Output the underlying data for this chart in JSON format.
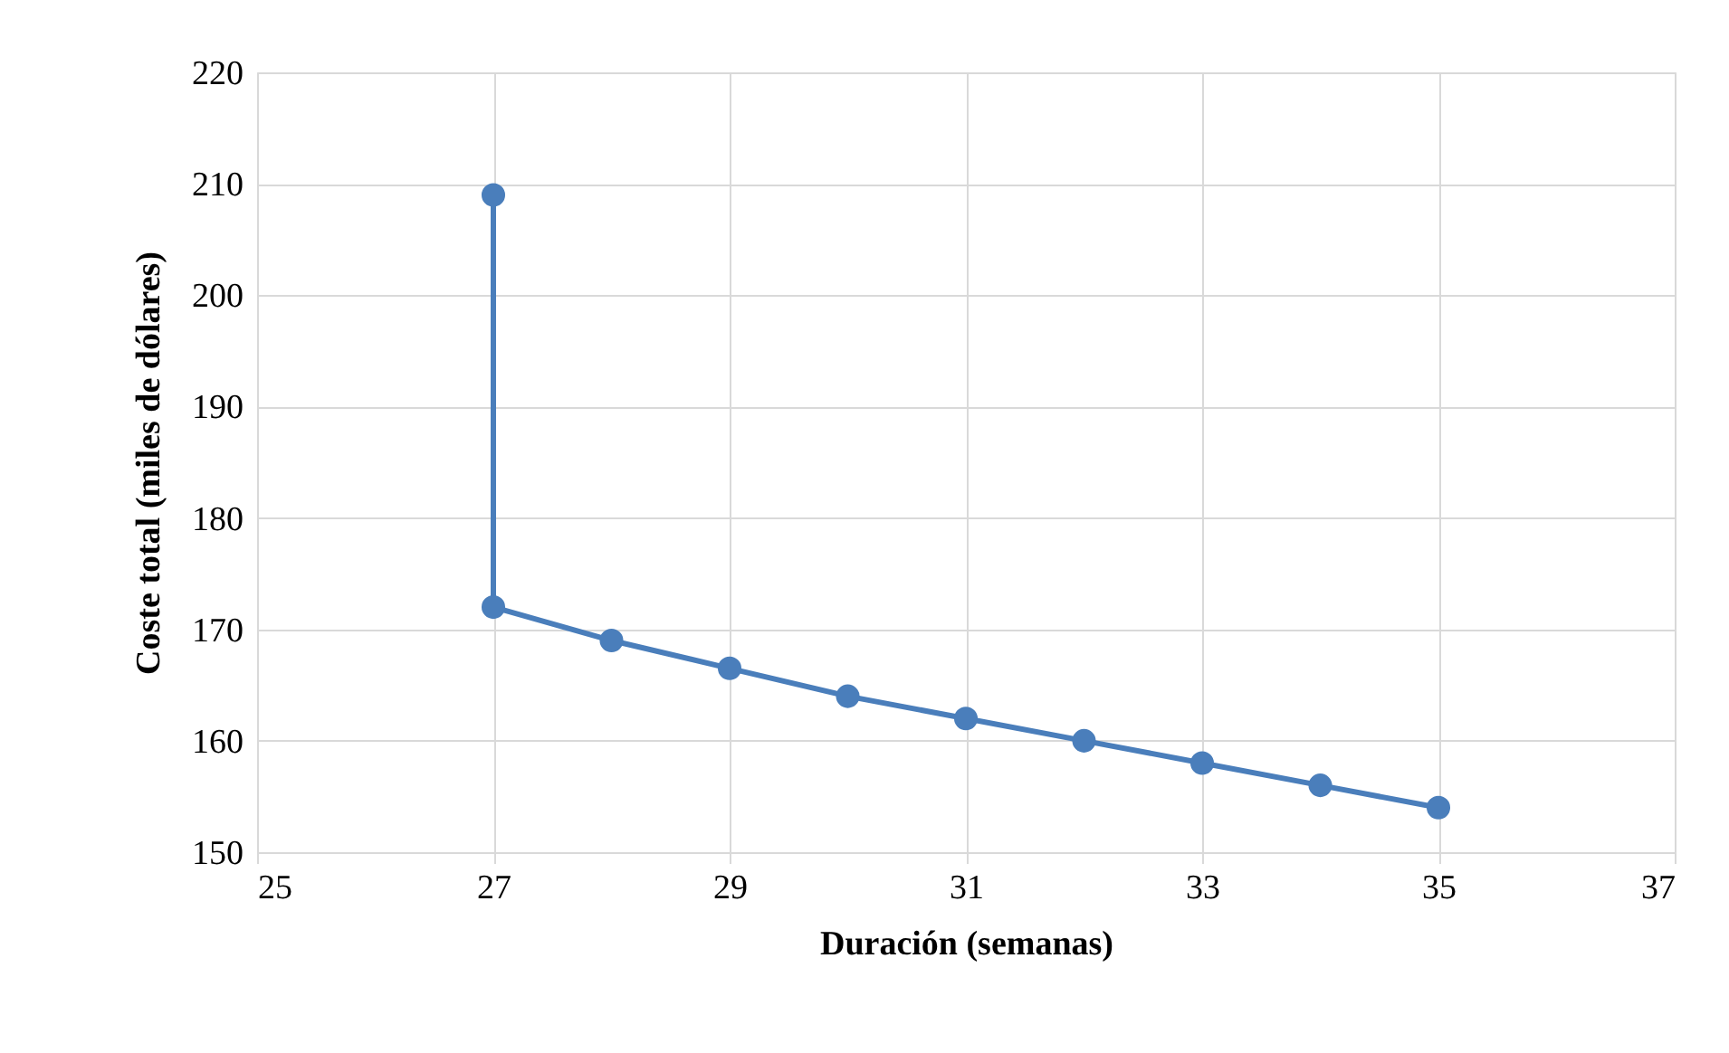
{
  "chart_data": {
    "type": "line",
    "xlabel": "Duración (semanas)",
    "ylabel": "Coste total (miles de dólares)",
    "x": [
      27,
      27,
      28,
      29,
      30,
      31,
      32,
      33,
      34,
      35
    ],
    "series": [
      {
        "color": "#4a7ebb",
        "values": [
          209,
          172,
          169,
          166.5,
          164,
          162,
          160,
          158,
          156,
          154
        ]
      }
    ],
    "xlim": [
      25,
      37
    ],
    "xticks": [
      25,
      27,
      29,
      31,
      33,
      35,
      37
    ],
    "ylim": [
      150,
      220
    ],
    "yticks": [
      150,
      160,
      170,
      180,
      190,
      200,
      210,
      220
    ],
    "grid": true,
    "marker": "circle",
    "line_style": "solid"
  }
}
